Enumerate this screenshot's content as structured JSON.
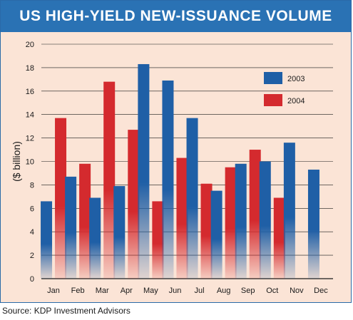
{
  "chart_data": {
    "type": "bar",
    "title": "US HIGH-YIELD NEW-ISSUANCE VOLUME",
    "xlabel": "",
    "ylabel": "($ billion)",
    "ylim": [
      0,
      20
    ],
    "yticks": [
      0,
      2,
      4,
      6,
      8,
      10,
      12,
      14,
      16,
      18,
      20
    ],
    "grid": true,
    "legend_position": "top-right",
    "categories": [
      "Jan",
      "Feb",
      "Mar",
      "Apr",
      "May",
      "Jun",
      "Jul",
      "Aug",
      "Sep",
      "Oct",
      "Nov",
      "Dec"
    ],
    "series": [
      {
        "name": "2003",
        "color": "#1f5fa6",
        "values": [
          6.6,
          8.7,
          6.9,
          7.9,
          18.3,
          16.9,
          13.7,
          7.5,
          9.8,
          10.0,
          11.6,
          9.3
        ]
      },
      {
        "name": "2004",
        "color": "#d42a2e",
        "values": [
          13.7,
          9.8,
          16.8,
          12.7,
          6.6,
          10.3,
          8.1,
          9.5,
          11.0,
          6.9,
          null,
          null
        ]
      }
    ]
  },
  "source": "Source: KDP Investment Advisors"
}
